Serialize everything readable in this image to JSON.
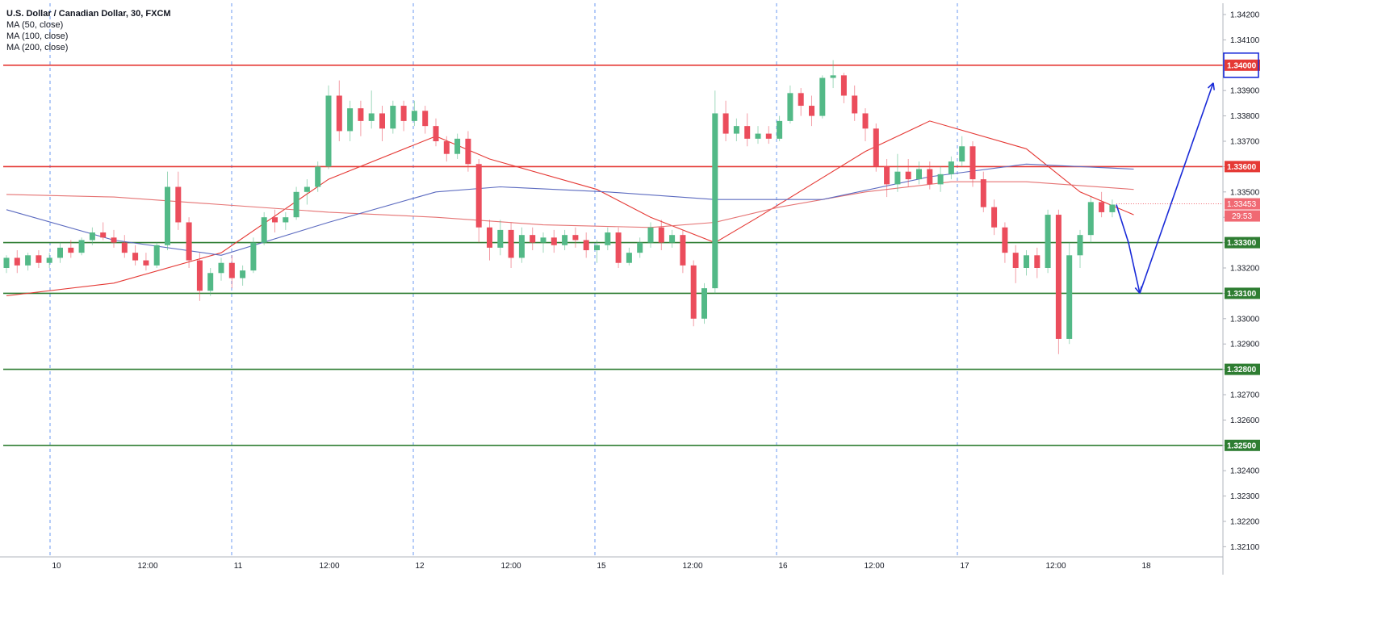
{
  "chart_data": {
    "type": "candlestick",
    "title": "U.S. Dollar / Canadian Dollar, 30, FXCM",
    "indicators": [
      "MA (50, close)",
      "MA (100, close)",
      "MA (200, close)"
    ],
    "ylim": [
      1.3205,
      1.3425
    ],
    "y_ticks": [
      "1.34200",
      "1.34100",
      "1.34000",
      "1.33900",
      "1.33800",
      "1.33700",
      "1.33600",
      "1.33500",
      "1.33400",
      "1.33300",
      "1.33200",
      "1.33100",
      "1.33000",
      "1.32900",
      "1.32800",
      "1.32700",
      "1.32600",
      "1.32500",
      "1.32400",
      "1.32300",
      "1.32200",
      "1.32100"
    ],
    "x_ticks": [
      "10",
      "12:00",
      "11",
      "12:00",
      "12",
      "12:00",
      "15",
      "12:00",
      "16",
      "12:00",
      "17",
      "12:00",
      "18"
    ],
    "day_separators": [
      "10",
      "11",
      "12",
      "15",
      "16",
      "17"
    ],
    "horizontal_levels": [
      {
        "price": 1.34,
        "label": "1.34000",
        "color": "#e53935"
      },
      {
        "price": 1.336,
        "label": "1.33600",
        "color": "#e53935"
      },
      {
        "price": 1.333,
        "label": "1.33300",
        "color": "#2e7d32"
      },
      {
        "price": 1.331,
        "label": "1.33100",
        "color": "#2e7d32"
      },
      {
        "price": 1.328,
        "label": "1.32800",
        "color": "#2e7d32"
      },
      {
        "price": 1.325,
        "label": "1.32500",
        "color": "#2e7d32"
      }
    ],
    "current_price": {
      "price": 1.33453,
      "label": "1.33453",
      "countdown": "29:53"
    },
    "target_zone": {
      "price": 1.34
    },
    "projection": [
      [
        1.3345,
        1.333
      ],
      [
        1.333,
        1.331
      ],
      [
        1.331,
        1.3393
      ]
    ],
    "series": [
      {
        "name": "Price",
        "type": "candlestick",
        "ohlc": [
          [
            1.332,
            1.3325,
            1.3318,
            1.3324
          ],
          [
            1.3324,
            1.3327,
            1.3318,
            1.3321
          ],
          [
            1.3321,
            1.3326,
            1.3319,
            1.3325
          ],
          [
            1.3325,
            1.3327,
            1.332,
            1.3322
          ],
          [
            1.3322,
            1.3326,
            1.332,
            1.3324
          ],
          [
            1.3324,
            1.333,
            1.3322,
            1.3328
          ],
          [
            1.3328,
            1.3331,
            1.3324,
            1.3326
          ],
          [
            1.3326,
            1.3332,
            1.3325,
            1.3331
          ],
          [
            1.3331,
            1.3336,
            1.3329,
            1.3334
          ],
          [
            1.3334,
            1.3338,
            1.3331,
            1.3332
          ],
          [
            1.3332,
            1.3335,
            1.3328,
            1.333
          ],
          [
            1.333,
            1.3333,
            1.3324,
            1.3326
          ],
          [
            1.3326,
            1.3329,
            1.3321,
            1.3323
          ],
          [
            1.3323,
            1.3326,
            1.3319,
            1.3321
          ],
          [
            1.3321,
            1.333,
            1.332,
            1.3329
          ],
          [
            1.3329,
            1.3358,
            1.3327,
            1.3352
          ],
          [
            1.3352,
            1.3358,
            1.3335,
            1.3338
          ],
          [
            1.3338,
            1.334,
            1.332,
            1.3323
          ],
          [
            1.3323,
            1.3326,
            1.3307,
            1.3311
          ],
          [
            1.3311,
            1.332,
            1.3309,
            1.3318
          ],
          [
            1.3318,
            1.3324,
            1.3315,
            1.3322
          ],
          [
            1.3322,
            1.3325,
            1.3312,
            1.3316
          ],
          [
            1.3316,
            1.3321,
            1.3313,
            1.3319
          ],
          [
            1.3319,
            1.3332,
            1.3318,
            1.333
          ],
          [
            1.333,
            1.3342,
            1.3329,
            1.334
          ],
          [
            1.334,
            1.3343,
            1.3334,
            1.3338
          ],
          [
            1.3338,
            1.3342,
            1.3335,
            1.334
          ],
          [
            1.334,
            1.3352,
            1.3339,
            1.335
          ],
          [
            1.335,
            1.3355,
            1.3345,
            1.3352
          ],
          [
            1.3352,
            1.3362,
            1.335,
            1.336
          ],
          [
            1.336,
            1.3392,
            1.3359,
            1.3388
          ],
          [
            1.3388,
            1.3394,
            1.337,
            1.3374
          ],
          [
            1.3374,
            1.3386,
            1.337,
            1.3383
          ],
          [
            1.3383,
            1.3386,
            1.3372,
            1.3378
          ],
          [
            1.3378,
            1.339,
            1.3375,
            1.3381
          ],
          [
            1.3381,
            1.3384,
            1.337,
            1.3375
          ],
          [
            1.3375,
            1.3386,
            1.3373,
            1.3384
          ],
          [
            1.3384,
            1.3386,
            1.3374,
            1.3378
          ],
          [
            1.3378,
            1.3386,
            1.3376,
            1.3382
          ],
          [
            1.3382,
            1.3384,
            1.3373,
            1.3376
          ],
          [
            1.3376,
            1.3379,
            1.3368,
            1.337
          ],
          [
            1.337,
            1.3372,
            1.3362,
            1.3365
          ],
          [
            1.3365,
            1.3373,
            1.3363,
            1.3371
          ],
          [
            1.3371,
            1.3374,
            1.3358,
            1.3361
          ],
          [
            1.3361,
            1.3363,
            1.333,
            1.3336
          ],
          [
            1.3336,
            1.3339,
            1.3323,
            1.3328
          ],
          [
            1.3328,
            1.3339,
            1.3325,
            1.3335
          ],
          [
            1.3335,
            1.3338,
            1.332,
            1.3324
          ],
          [
            1.3324,
            1.3336,
            1.3322,
            1.3333
          ],
          [
            1.3333,
            1.3336,
            1.3327,
            1.333
          ],
          [
            1.333,
            1.3334,
            1.3326,
            1.3332
          ],
          [
            1.3332,
            1.3335,
            1.3326,
            1.3329
          ],
          [
            1.3329,
            1.3335,
            1.3327,
            1.3333
          ],
          [
            1.3333,
            1.3336,
            1.3328,
            1.3331
          ],
          [
            1.3331,
            1.3334,
            1.3324,
            1.3327
          ],
          [
            1.3327,
            1.3331,
            1.3322,
            1.3329
          ],
          [
            1.3329,
            1.3336,
            1.3327,
            1.3334
          ],
          [
            1.3334,
            1.3336,
            1.332,
            1.3322
          ],
          [
            1.3322,
            1.3328,
            1.3321,
            1.3326
          ],
          [
            1.3326,
            1.3332,
            1.3324,
            1.333
          ],
          [
            1.333,
            1.3338,
            1.3328,
            1.3336
          ],
          [
            1.3336,
            1.3339,
            1.3327,
            1.333
          ],
          [
            1.333,
            1.3335,
            1.3328,
            1.3333
          ],
          [
            1.3333,
            1.3335,
            1.3318,
            1.3321
          ],
          [
            1.3321,
            1.3323,
            1.3297,
            1.33
          ],
          [
            1.33,
            1.3314,
            1.3298,
            1.3312
          ],
          [
            1.3312,
            1.339,
            1.331,
            1.3381
          ],
          [
            1.3381,
            1.3386,
            1.337,
            1.3373
          ],
          [
            1.3373,
            1.3379,
            1.337,
            1.3376
          ],
          [
            1.3376,
            1.3381,
            1.3368,
            1.3371
          ],
          [
            1.3371,
            1.3376,
            1.3369,
            1.3373
          ],
          [
            1.3373,
            1.3376,
            1.3369,
            1.3371
          ],
          [
            1.3371,
            1.338,
            1.337,
            1.3378
          ],
          [
            1.3378,
            1.3392,
            1.3377,
            1.3389
          ],
          [
            1.3389,
            1.3391,
            1.338,
            1.3384
          ],
          [
            1.3384,
            1.3388,
            1.3376,
            1.338
          ],
          [
            1.338,
            1.3396,
            1.3379,
            1.3395
          ],
          [
            1.3395,
            1.3402,
            1.3391,
            1.3396
          ],
          [
            1.3396,
            1.3397,
            1.3385,
            1.3388
          ],
          [
            1.3388,
            1.3392,
            1.3378,
            1.3381
          ],
          [
            1.3381,
            1.3383,
            1.337,
            1.3375
          ],
          [
            1.3375,
            1.3377,
            1.3358,
            1.336
          ],
          [
            1.336,
            1.3363,
            1.3348,
            1.3353
          ],
          [
            1.3353,
            1.3365,
            1.335,
            1.3358
          ],
          [
            1.3358,
            1.3363,
            1.3352,
            1.3355
          ],
          [
            1.3355,
            1.3362,
            1.3353,
            1.3359
          ],
          [
            1.3359,
            1.3362,
            1.3351,
            1.3353
          ],
          [
            1.3353,
            1.336,
            1.335,
            1.3357
          ],
          [
            1.3357,
            1.3364,
            1.3355,
            1.3362
          ],
          [
            1.3362,
            1.3372,
            1.336,
            1.3368
          ],
          [
            1.3368,
            1.337,
            1.3352,
            1.3355
          ],
          [
            1.3355,
            1.3358,
            1.3342,
            1.3344
          ],
          [
            1.3344,
            1.3347,
            1.3333,
            1.3336
          ],
          [
            1.3336,
            1.3338,
            1.3322,
            1.3326
          ],
          [
            1.3326,
            1.3329,
            1.3314,
            1.332
          ],
          [
            1.332,
            1.3327,
            1.3317,
            1.3325
          ],
          [
            1.3325,
            1.3328,
            1.3316,
            1.332
          ],
          [
            1.332,
            1.3343,
            1.3318,
            1.3341
          ],
          [
            1.3341,
            1.3343,
            1.3286,
            1.3292
          ],
          [
            1.3292,
            1.333,
            1.329,
            1.3325
          ],
          [
            1.3325,
            1.3335,
            1.332,
            1.3333
          ],
          [
            1.3333,
            1.3348,
            1.333,
            1.3346
          ],
          [
            1.3346,
            1.335,
            1.334,
            1.3342
          ],
          [
            1.3342,
            1.3347,
            1.334,
            1.3345
          ]
        ]
      },
      {
        "name": "MA (50, close)",
        "type": "line",
        "color": "#e53935",
        "points": [
          [
            0,
            1.3309
          ],
          [
            10,
            1.3314
          ],
          [
            20,
            1.3326
          ],
          [
            30,
            1.3355
          ],
          [
            40,
            1.3372
          ],
          [
            45,
            1.3363
          ],
          [
            55,
            1.3351
          ],
          [
            60,
            1.334
          ],
          [
            66,
            1.333
          ],
          [
            70,
            1.334
          ],
          [
            80,
            1.3366
          ],
          [
            86,
            1.3378
          ],
          [
            95,
            1.3367
          ],
          [
            100,
            1.335
          ],
          [
            105,
            1.3341
          ]
        ]
      },
      {
        "name": "MA (100, close)",
        "type": "line",
        "color": "#e57373",
        "points": [
          [
            0,
            1.3349
          ],
          [
            10,
            1.3348
          ],
          [
            20,
            1.3345
          ],
          [
            30,
            1.3342
          ],
          [
            40,
            1.334
          ],
          [
            50,
            1.3337
          ],
          [
            60,
            1.3336
          ],
          [
            66,
            1.3338
          ],
          [
            72,
            1.3344
          ],
          [
            80,
            1.335
          ],
          [
            88,
            1.3354
          ],
          [
            95,
            1.3354
          ],
          [
            105,
            1.3351
          ]
        ]
      },
      {
        "name": "MA (200, close)",
        "type": "line",
        "color": "#5c6bc0",
        "points": [
          [
            0,
            1.3343
          ],
          [
            10,
            1.3331
          ],
          [
            20,
            1.3325
          ],
          [
            30,
            1.3338
          ],
          [
            40,
            1.335
          ],
          [
            46,
            1.3352
          ],
          [
            56,
            1.335
          ],
          [
            66,
            1.3347
          ],
          [
            76,
            1.3347
          ],
          [
            86,
            1.3356
          ],
          [
            95,
            1.3361
          ],
          [
            105,
            1.3359
          ]
        ]
      }
    ]
  }
}
